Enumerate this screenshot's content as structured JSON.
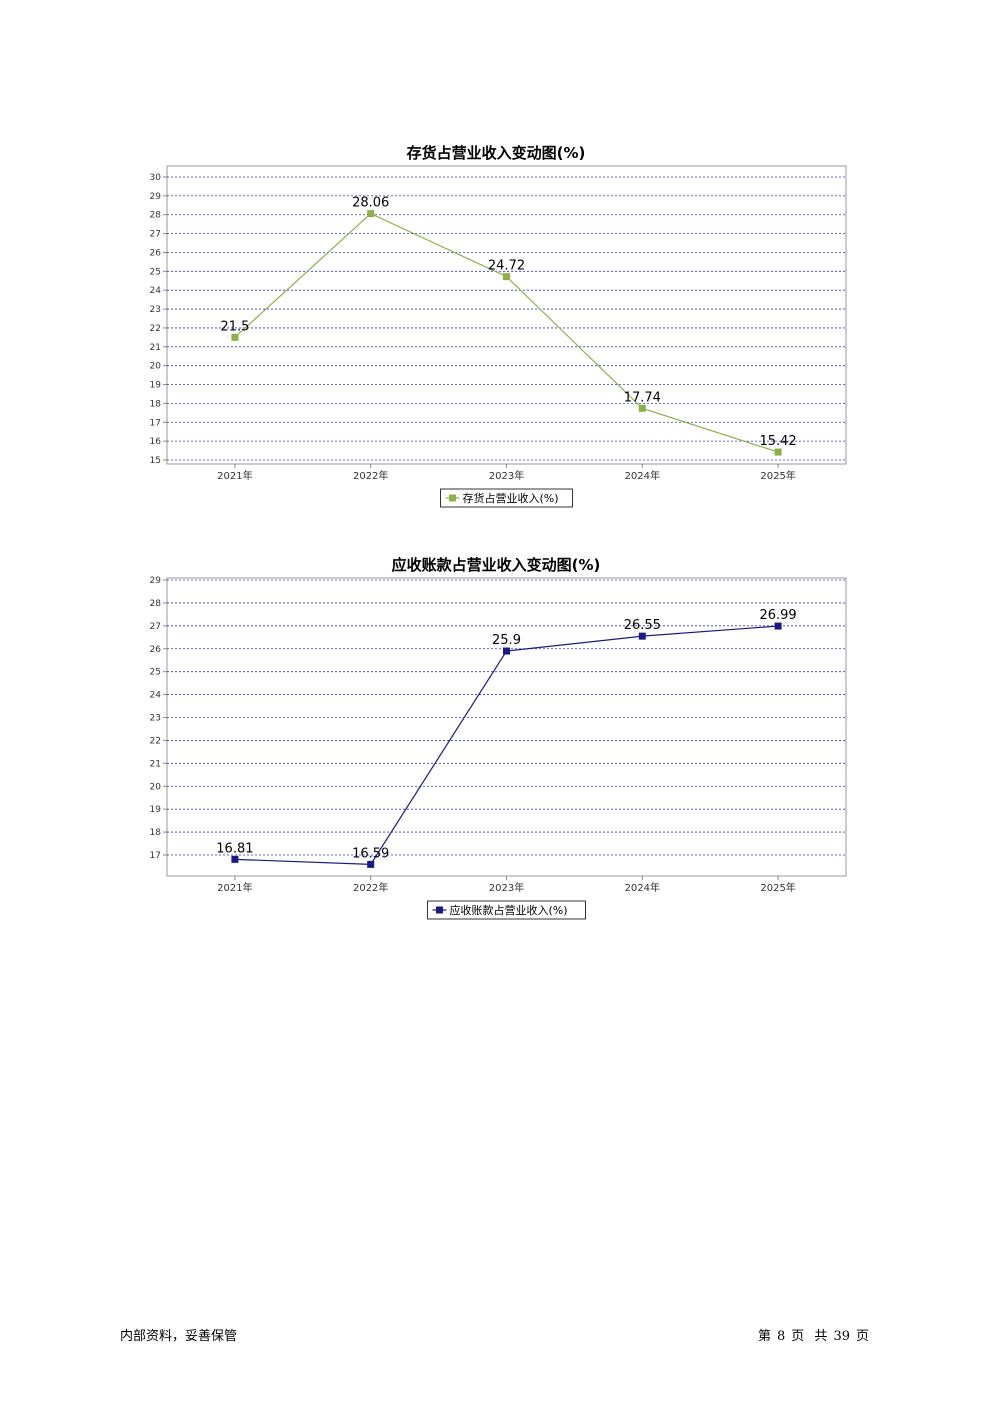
{
  "chart_data": [
    {
      "type": "line",
      "title": "存货占营业收入变动图(%)",
      "categories": [
        "2021年",
        "2022年",
        "2023年",
        "2024年",
        "2025年"
      ],
      "series": [
        {
          "name": "存货占营业收入(%)",
          "values": [
            21.5,
            28.06,
            24.72,
            17.74,
            15.42
          ],
          "color": "#8db04a"
        }
      ],
      "yticks": [
        30,
        29,
        28,
        27,
        26,
        25,
        24,
        23,
        22,
        21,
        20,
        19,
        18,
        17,
        16,
        15
      ],
      "ylim": [
        15,
        30
      ],
      "grid": true,
      "grid_color": "#3333cc",
      "legend_position": "bottom-center"
    },
    {
      "type": "line",
      "title": "应收账款占营业收入变动图(%)",
      "categories": [
        "2021年",
        "2022年",
        "2023年",
        "2024年",
        "2025年"
      ],
      "series": [
        {
          "name": "应收账款占营业收入(%)",
          "values": [
            16.81,
            16.59,
            25.9,
            26.55,
            26.99
          ],
          "color": "#1a1a80"
        }
      ],
      "yticks": [
        29,
        28,
        27,
        26,
        25,
        24,
        23,
        22,
        21,
        20,
        19,
        18,
        17
      ],
      "ylim": [
        16.2,
        29
      ],
      "grid": true,
      "grid_color": "#3333cc",
      "legend_position": "bottom-center"
    }
  ],
  "footer": {
    "left": "内部资料，妥善保管",
    "page_label_prefix": "第",
    "page_number": "8",
    "page_label_suffix": "页",
    "total_label_prefix": "共",
    "total_pages": "39",
    "total_label_suffix": "页"
  }
}
